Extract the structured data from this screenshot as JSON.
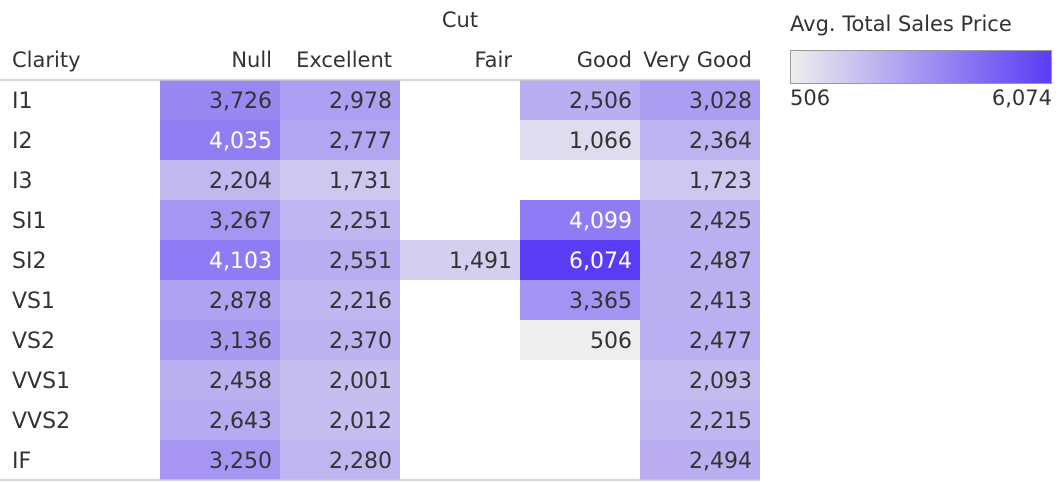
{
  "chart_data": {
    "type": "heatmap",
    "column_group_label": "Cut",
    "row_header_label": "Clarity",
    "columns": [
      "Null",
      "Excellent",
      "Fair",
      "Good",
      "Very Good"
    ],
    "rows": [
      "I1",
      "I2",
      "I3",
      "SI1",
      "SI2",
      "VS1",
      "VS2",
      "VVS1",
      "VVS2",
      "IF"
    ],
    "values": [
      [
        3726,
        2978,
        null,
        2506,
        3028
      ],
      [
        4035,
        2777,
        null,
        1066,
        2364
      ],
      [
        2204,
        1731,
        null,
        null,
        1723
      ],
      [
        3267,
        2251,
        null,
        4099,
        2425
      ],
      [
        4103,
        2551,
        1491,
        6074,
        2487
      ],
      [
        2878,
        2216,
        null,
        3365,
        2413
      ],
      [
        3136,
        2370,
        null,
        506,
        2477
      ],
      [
        2458,
        2001,
        null,
        null,
        2093
      ],
      [
        2643,
        2012,
        null,
        null,
        2215
      ],
      [
        3250,
        2280,
        null,
        null,
        2494
      ]
    ],
    "color_scale": {
      "title": "Avg. Total Sales Price",
      "min": 506,
      "max": 6074,
      "min_label": "506",
      "max_label": "6,074",
      "low_color": "#eeeeee",
      "high_color": "#5b3cf5"
    },
    "light_text_color": "#ffffff",
    "dark_text_color": "#333333"
  }
}
